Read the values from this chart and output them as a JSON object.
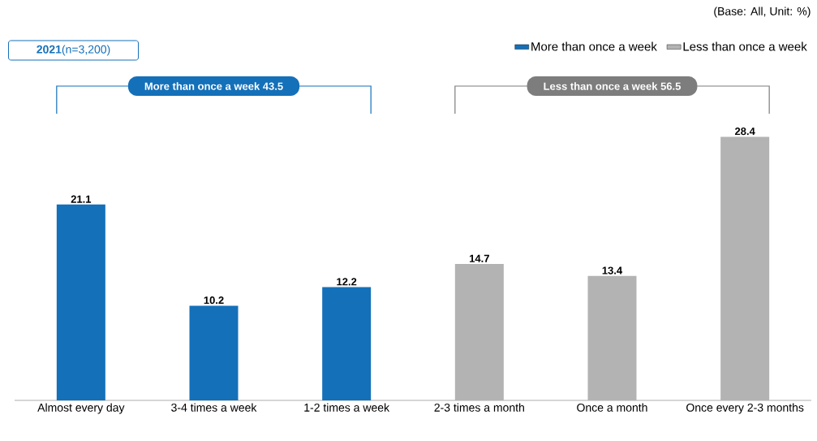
{
  "chart_data": {
    "type": "bar",
    "subtitle": "**2021**(n=3,200)",
    "categories": [
      "Almost every day",
      "3-4 times a week",
      "1-2 times a week",
      "2-3 times a month",
      "Once a month",
      "Once every 2-3 months"
    ],
    "series": [
      {
        "name": "More than once a week",
        "color": "#1470b9",
        "values": [
          21.1,
          10.2,
          12.2,
          null,
          null,
          null
        ]
      },
      {
        "name": "Less than once a week",
        "color": "#b3b3b3",
        "values": [
          null,
          null,
          null,
          14.7,
          13.4,
          28.4
        ]
      }
    ],
    "annotations": [
      "(Base: All, Unit: %)",
      "More than once a week 43.5",
      "Less than once a week 56.5"
    ],
    "data_labels": true,
    "legend": "top right"
  }
}
